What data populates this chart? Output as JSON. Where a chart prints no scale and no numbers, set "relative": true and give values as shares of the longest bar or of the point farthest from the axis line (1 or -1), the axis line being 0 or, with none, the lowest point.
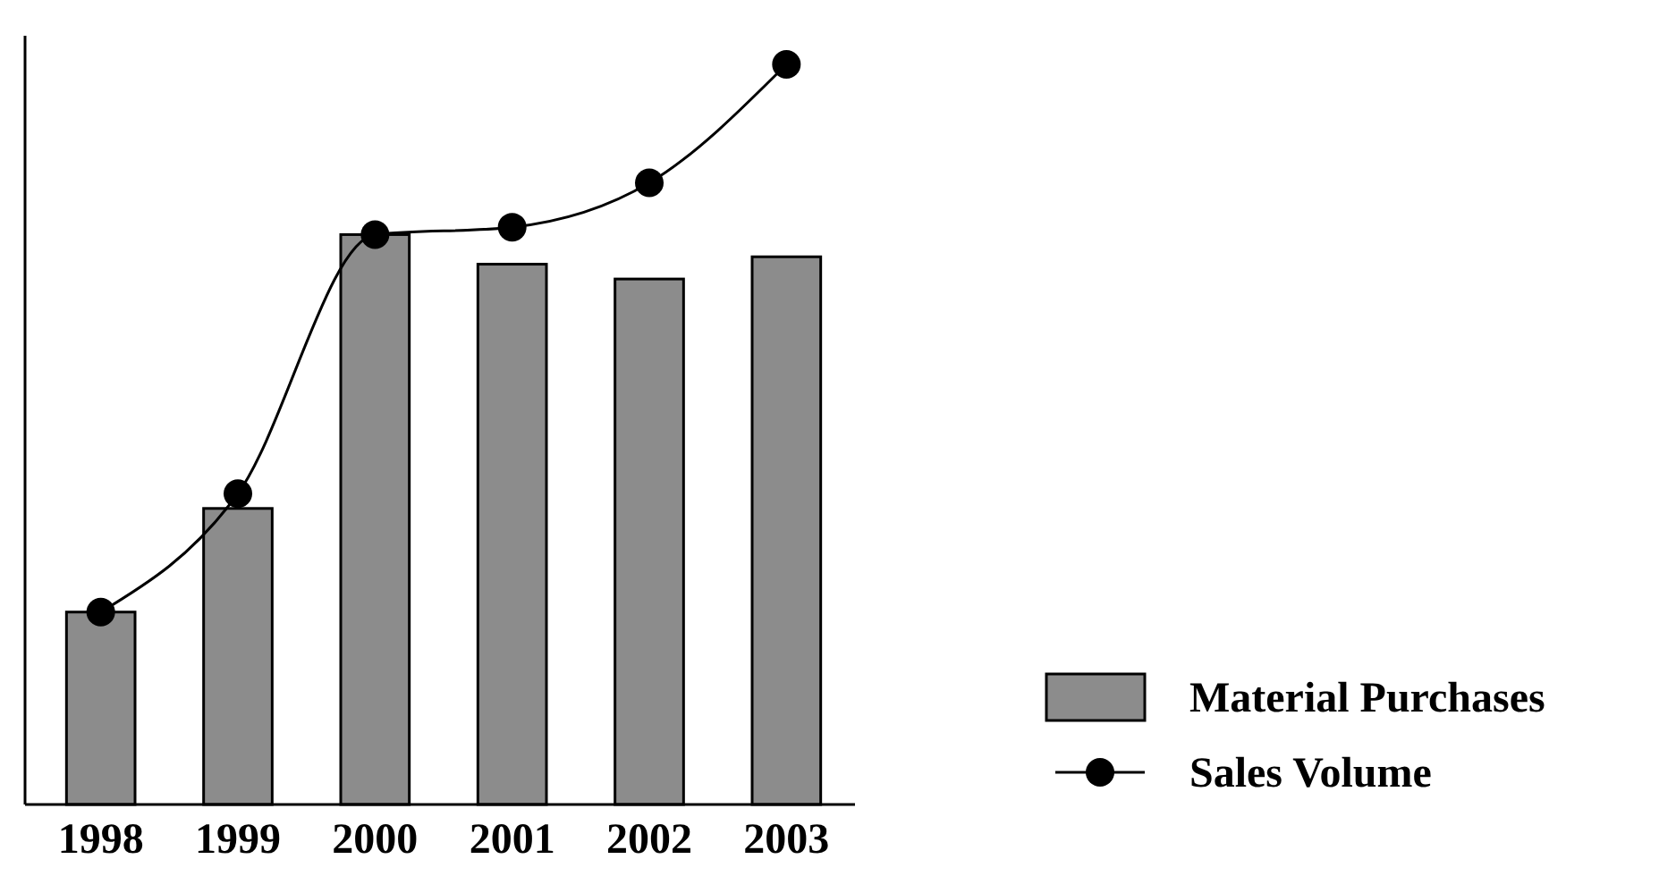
{
  "chart_data": {
    "type": "bar",
    "relative": true,
    "categories": [
      "1998",
      "1999",
      "2000",
      "2001",
      "2002",
      "2003"
    ],
    "series": [
      {
        "name": "Material Purchases",
        "color": "#8c8c8c",
        "values": [
          0.26,
          0.4,
          0.77,
          0.73,
          0.71,
          0.74
        ]
      },
      {
        "name": "Sales Volume",
        "type": "line",
        "color": "#000000",
        "marker": "circle",
        "values": [
          0.26,
          0.42,
          0.77,
          0.78,
          0.84,
          1
        ]
      }
    ],
    "legend": "bottom right"
  }
}
